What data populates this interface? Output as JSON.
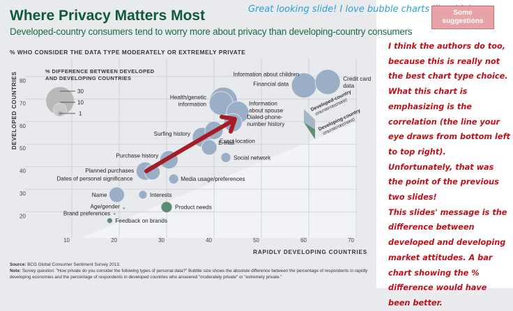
{
  "slide": {
    "title": "Where Privacy Matters Most",
    "subtitle": "Developed-country consumers tend to worry more about privacy than developing-country consumers",
    "source_label": "Source:",
    "source_text": "BCG Global Consumer Sentiment Survey 2013.",
    "note_label": "Note:",
    "note_text": "Survey question: \"How private do you consider the following types of personal data?\" Bubble size shows the absolute difference between the percentage of respondents in rapidly developing economies and the percentage of respondents in developed countries who answered \"moderately private\" or \"extremely private.\""
  },
  "annotations": {
    "blue_comment": "Great looking slide!  I love bubble charts like this!",
    "suggestions_button": "Some suggestions",
    "red_notes": [
      "I think the authors do too, because this is really not the best chart type choice. What this chart is emphasizing is the correlation (the line your eye draws from bottom left to top right).",
      "Unfortunately, that was the point of the previous two slides!",
      "This slides' message is the difference between developed and developing market attitudes. A bar chart showing the % difference would have been better."
    ],
    "arrow_color": "#a51c24"
  },
  "chart_data": {
    "type": "scatter",
    "title": "% WHO CONSIDER THE DATA TYPE MODERATELY OR EXTREMELY PRIVATE",
    "xlabel": "RAPIDLY DEVELOPING COUNTRIES",
    "ylabel": "DEVELOPED COUNTRIES",
    "xlim": [
      5,
      70
    ],
    "ylim": [
      10,
      84
    ],
    "x_ticks": [
      10,
      20,
      30,
      40,
      50,
      60,
      70
    ],
    "y_ticks": [
      20,
      30,
      40,
      50,
      60,
      70,
      80
    ],
    "grid": true,
    "size_legend": {
      "title_line1": "% DIFFERENCE BETWEEN DEVELOPED",
      "title_line2": "AND DEVELOPING COUNTRIES",
      "sizes": [
        30,
        10,
        1
      ]
    },
    "region_legend": [
      {
        "label_bold": "Developed-country",
        "label": "consumers more concerned",
        "color": "#9fb0c4"
      },
      {
        "label_bold": "Developing-country",
        "label": "consumers more concerned",
        "color": "#5a8f7b"
      }
    ],
    "colors": {
      "developed_more": "#9aaec6",
      "developing_more": "#5b8d76"
    },
    "points": [
      {
        "label": "Financial data",
        "x": 59,
        "y": 77,
        "size": 18,
        "group": "developed_more"
      },
      {
        "label": "Credit card data",
        "x": 64,
        "y": 78.5,
        "size": 18,
        "group": "developed_more"
      },
      {
        "label": "Information about children",
        "x": 42,
        "y": 70,
        "size": 20,
        "group": "developed_more"
      },
      {
        "label": "Health/genetic information",
        "x": 41.5,
        "y": 69,
        "size": 17,
        "group": "developed_more"
      },
      {
        "label": "Information about spouse",
        "x": 45,
        "y": 65,
        "size": 16,
        "group": "developed_more"
      },
      {
        "label": "Dialed-phone-number history",
        "x": 44,
        "y": 60.5,
        "size": 13,
        "group": "developed_more"
      },
      {
        "label": "Exact location",
        "x": 40,
        "y": 57,
        "size": 13,
        "group": "developed_more"
      },
      {
        "label": "Surfing history",
        "x": 37.5,
        "y": 54,
        "size": 14,
        "group": "developed_more"
      },
      {
        "label": "E-mail",
        "x": 39,
        "y": 49.5,
        "size": 11,
        "group": "developed_more"
      },
      {
        "label": "Social network",
        "x": 42.5,
        "y": 45,
        "size": 7,
        "group": "developed_more"
      },
      {
        "label": "Purchase history",
        "x": 30.5,
        "y": 44,
        "size": 13,
        "group": "developed_more"
      },
      {
        "label": "Planned purchases",
        "x": 25.5,
        "y": 39,
        "size": 13,
        "group": "developed_more"
      },
      {
        "label": "Dates of personal significance",
        "x": 27,
        "y": 38.5,
        "size": 11,
        "group": "developed_more"
      },
      {
        "label": "Media usage/preferences",
        "x": 31.5,
        "y": 35.5,
        "size": 7,
        "group": "developed_more"
      },
      {
        "label": "Name",
        "x": 19.5,
        "y": 28.5,
        "size": 11,
        "group": "developed_more"
      },
      {
        "label": "Interests",
        "x": 25,
        "y": 28.5,
        "size": 6,
        "group": "developed_more"
      },
      {
        "label": "Age/gender",
        "x": 21,
        "y": 22.5,
        "size": 2,
        "group": "developed_more"
      },
      {
        "label": "Brand preferences",
        "x": 19,
        "y": 20,
        "size": 2,
        "group": "developed_more"
      },
      {
        "label": "Product needs",
        "x": 30,
        "y": 23,
        "size": 8,
        "group": "developing_more"
      },
      {
        "label": "Feedback on brands",
        "x": 18,
        "y": 17,
        "size": 4,
        "group": "developing_more"
      }
    ]
  }
}
